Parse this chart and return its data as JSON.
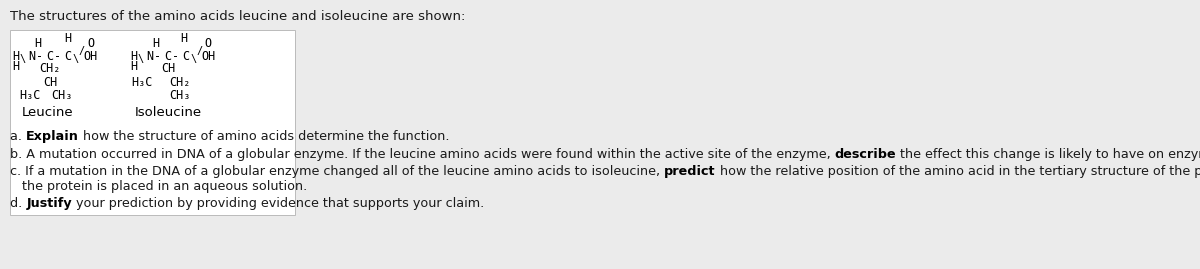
{
  "background_color": "#ebebeb",
  "box_color": "#ffffff",
  "box_border": "#cccccc",
  "title": "The structures of the amino acids leucine and isoleucine are shown:",
  "title_color": "#1a1a1a",
  "title_fontsize": 9.5,
  "text_fontsize": 9.2,
  "chem_fontsize": 8.5,
  "text_color": "#1a1a1a",
  "bold_color": "#000000",
  "q_a_normal": "a. ",
  "q_a_bold": "Explain",
  "q_a_rest": " how the structure of amino acids determine the function.",
  "q_b_normal1": "b. A mutation occurred in DNA of a globular enzyme. If the leucine amino acids were found within the active site of the enzyme, ",
  "q_b_bold": "describe",
  "q_b_normal2": " the effect this change is likely to have on enzymatic function.",
  "q_c_normal1": "c. If a mutation in the DNA of a globular enzyme changed all of the leucine amino acids to isoleucine, ",
  "q_c_bold": "predict",
  "q_c_normal2": " how the relative position of the amino acid in the tertiary structure of the protein would be affected when",
  "q_c_cont": "   the protein is placed in an aqueous solution.",
  "q_d_normal": "d. ",
  "q_d_bold": "Justify",
  "q_d_rest": " your prediction by providing evidence that supports your claim.",
  "leucine_label": "Leucine",
  "isoleucine_label": "Isoleucine"
}
